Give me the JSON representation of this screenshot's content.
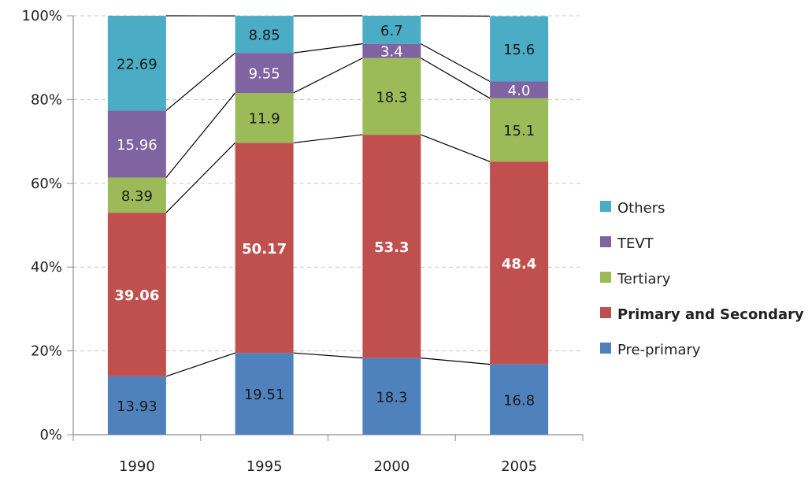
{
  "chart_data": {
    "type": "bar",
    "stacked": true,
    "percent_axis": true,
    "categories": [
      "1990",
      "1995",
      "2000",
      "2005"
    ],
    "y_ticks": [
      "0%",
      "20%",
      "40%",
      "60%",
      "80%",
      "100%"
    ],
    "ylim": [
      0,
      100
    ],
    "grid": true,
    "legend_position": "right",
    "connector_lines": true,
    "series": [
      {
        "name": "Pre-primary",
        "color": "#4f81bd",
        "values": [
          13.93,
          19.51,
          18.3,
          16.8
        ],
        "labels": [
          "13.93",
          "19.51",
          "18.3",
          "16.8"
        ],
        "label_color": "#1a1a1a",
        "bold_label": false
      },
      {
        "name": "Primary and Secondary",
        "color": "#c0504d",
        "values": [
          39.06,
          50.17,
          53.3,
          48.4
        ],
        "labels": [
          "39.06",
          "50.17",
          "53.3",
          "48.4"
        ],
        "label_color": "#ffffff",
        "bold_label": true
      },
      {
        "name": "Tertiary",
        "color": "#9bbb59",
        "values": [
          8.39,
          11.9,
          18.3,
          15.1
        ],
        "labels": [
          "8.39",
          "11.9",
          "18.3",
          "15.1"
        ],
        "label_color": "#1a1a1a",
        "bold_label": false
      },
      {
        "name": "TEVT",
        "color": "#8064a2",
        "values": [
          15.96,
          9.55,
          3.4,
          4.0
        ],
        "labels": [
          "15.96",
          "9.55",
          "3.4",
          "4.0"
        ],
        "label_color": "#ffffff",
        "bold_label": false
      },
      {
        "name": "Others",
        "color": "#4bacc6",
        "values": [
          22.69,
          8.85,
          6.7,
          15.6
        ],
        "labels": [
          "22.69",
          "8.85",
          "6.7",
          "15.6"
        ],
        "label_color": "#1a1a1a",
        "bold_label": false
      }
    ]
  }
}
